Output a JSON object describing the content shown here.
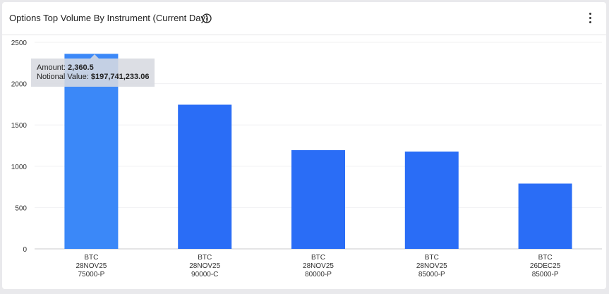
{
  "header": {
    "title": "Options Top Volume By Instrument (Current Day)",
    "info_icon": "info-icon",
    "menu_icon": "kebab-menu-icon"
  },
  "tooltip": {
    "amount_label": "Amount:",
    "amount_value": "2,360.5",
    "notional_label": "Notional Value:",
    "notional_value": "$197,741,233.06"
  },
  "colors": {
    "bar": "#2a6df6",
    "bar_highlight": "#3b88f8",
    "grid": "#f0f0f2",
    "axis": "#c8c8cc"
  },
  "chart_data": {
    "type": "bar",
    "categories": [
      [
        "BTC",
        "28NOV25",
        "75000-P"
      ],
      [
        "BTC",
        "28NOV25",
        "90000-C"
      ],
      [
        "BTC",
        "28NOV25",
        "80000-P"
      ],
      [
        "BTC",
        "28NOV25",
        "85000-P"
      ],
      [
        "BTC",
        "26DEC25",
        "85000-P"
      ]
    ],
    "values": [
      2360.5,
      1745,
      1195,
      1178,
      790
    ],
    "highlighted_index": 0,
    "ylim": [
      0,
      2500
    ],
    "yticks": [
      0,
      500,
      1000,
      1500,
      2000,
      2500
    ],
    "grid": true
  }
}
